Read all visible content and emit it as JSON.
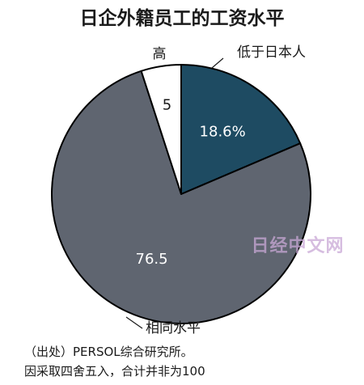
{
  "chart_data": {
    "type": "pie",
    "title": "日企外籍员工的工资水平",
    "slices": [
      {
        "label": "低于日本人",
        "value": 18.6,
        "value_text": "18.6%",
        "color": "#1e4b62",
        "text_color": "#ffffff"
      },
      {
        "label": "相同水平",
        "value": 76.5,
        "value_text": "76.5",
        "color": "#5f6570",
        "text_color": "#ffffff"
      },
      {
        "label": "高",
        "value": 5,
        "value_text": "5",
        "color": "#ffffff",
        "text_color": "#1a1a1a"
      }
    ],
    "start_angle_deg": 0,
    "direction": "clockwise",
    "edge_color": "#000000"
  },
  "watermark": "日经中文网",
  "notes": {
    "source": "（出处）PERSOL综合研究所。",
    "rounding": "因采取四舍五入，合计并非为100"
  }
}
